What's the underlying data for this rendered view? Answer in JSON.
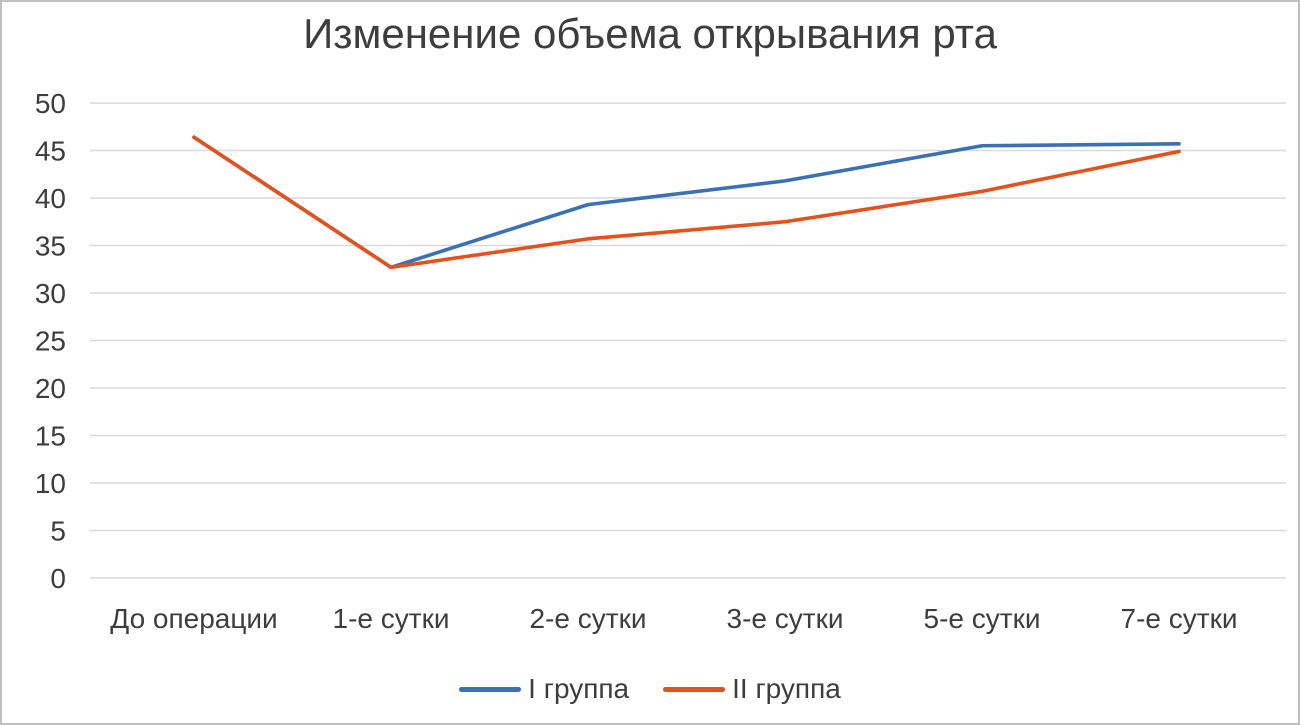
{
  "chart_data": {
    "type": "line",
    "title": "Изменение объема открывания рта",
    "categories": [
      "До операции",
      "1-е сутки",
      "2-е сутки",
      "3-е сутки",
      "5-е сутки",
      "7-е сутки"
    ],
    "series": [
      {
        "name": "I группа",
        "color": "#3a70b8",
        "values": [
          46.4,
          32.7,
          39.3,
          41.8,
          45.5,
          45.7
        ]
      },
      {
        "name": "II группа",
        "color": "#e4521b",
        "values": [
          46.4,
          32.7,
          35.7,
          37.5,
          40.7,
          44.9
        ]
      }
    ],
    "ylim": [
      0,
      50
    ],
    "ytick_step": 5,
    "yticks": [
      0,
      5,
      10,
      15,
      20,
      25,
      30,
      35,
      40,
      45,
      50
    ],
    "grid": true,
    "legend_position": "bottom"
  },
  "colors": {
    "gridline": "#d9d9d9",
    "tick_text": "#3d3d3d",
    "title_text": "#3d3d3d",
    "frame_border": "#bfbfbf"
  }
}
